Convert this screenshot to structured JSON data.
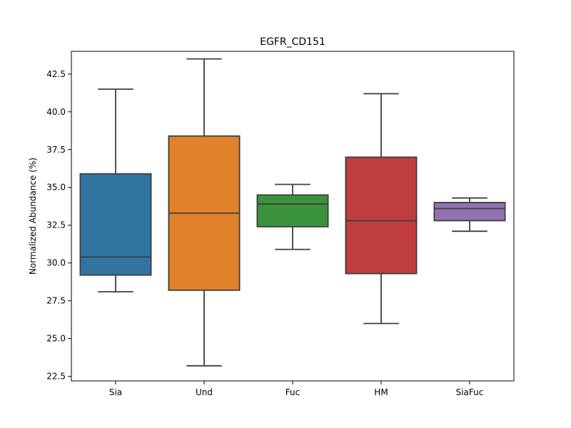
{
  "chart_data": {
    "type": "box",
    "title": "EGFR_CD151",
    "xlabel": "",
    "ylabel": "Normalized Abundance (%)",
    "ylim": [
      22.2,
      44.0
    ],
    "yticks": [
      22.5,
      25.0,
      27.5,
      30.0,
      32.5,
      35.0,
      37.5,
      40.0,
      42.5
    ],
    "ytick_labels": [
      "22.5",
      "25.0",
      "27.5",
      "30.0",
      "32.5",
      "35.0",
      "37.5",
      "40.0",
      "42.5"
    ],
    "categories": [
      "Sia",
      "Und",
      "Fuc",
      "HM",
      "SiaFuc"
    ],
    "boxes": [
      {
        "category": "Sia",
        "whisker_low": 28.1,
        "q1": 29.2,
        "median": 30.4,
        "q3": 35.9,
        "whisker_high": 41.5,
        "color": "#3274a1"
      },
      {
        "category": "Und",
        "whisker_low": 23.2,
        "q1": 28.2,
        "median": 33.3,
        "q3": 38.4,
        "whisker_high": 43.5,
        "color": "#e1812c"
      },
      {
        "category": "Fuc",
        "whisker_low": 30.9,
        "q1": 32.4,
        "median": 33.9,
        "q3": 34.5,
        "whisker_high": 35.2,
        "color": "#3a923a"
      },
      {
        "category": "HM",
        "whisker_low": 26.0,
        "q1": 29.3,
        "median": 32.8,
        "q3": 37.0,
        "whisker_high": 41.2,
        "color": "#c03d3e"
      },
      {
        "category": "SiaFuc",
        "whisker_low": 32.1,
        "q1": 32.8,
        "median": 33.6,
        "q3": 34.0,
        "whisker_high": 34.3,
        "color": "#9372b2"
      }
    ],
    "line_color": "#3f3f3f",
    "grid": false,
    "legend": "none"
  }
}
